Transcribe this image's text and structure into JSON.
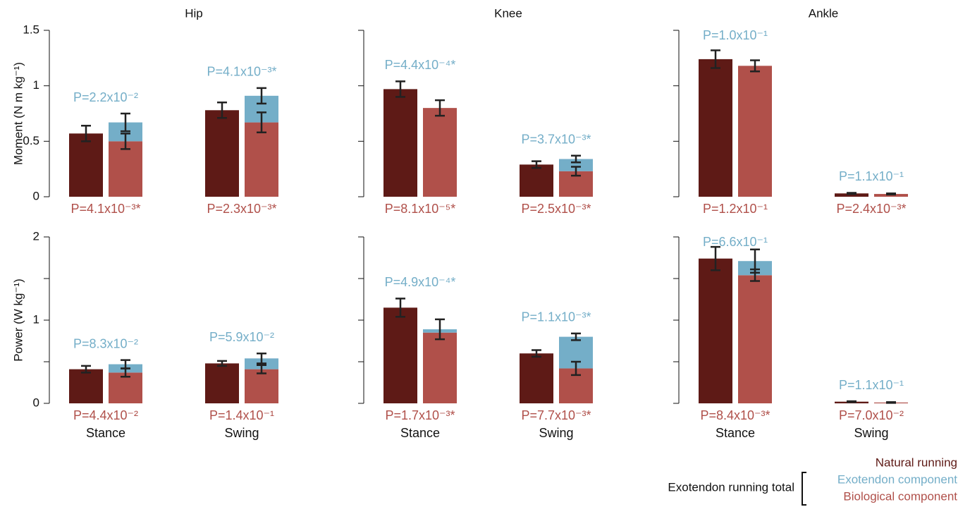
{
  "chart_data": [
    {
      "type": "bar",
      "title": "Hip",
      "ylabel": "Moment (N m kg⁻¹)",
      "categories": [
        null,
        null
      ],
      "ylim": [
        0,
        1.5
      ],
      "yticks": [
        0,
        0.5,
        1,
        1.5
      ],
      "ytick_labels": true,
      "series": [
        {
          "name": "Natural running",
          "color": "#5e1a16",
          "values": [
            0.57,
            0.78
          ],
          "errors": [
            0.07,
            0.07
          ]
        },
        {
          "name": "Biological component",
          "color": "#b0504a",
          "values": [
            0.5,
            0.67
          ],
          "errors": [
            0.07,
            0.09
          ]
        },
        {
          "name": "Exotendon component",
          "color": "#74aec8",
          "values": [
            0.17,
            0.24
          ],
          "errors": [
            0.08,
            0.07
          ]
        }
      ],
      "top_labels": [
        "P=2.2x10⁻²",
        "P=4.1x10⁻³*"
      ],
      "bottom_labels": [
        "P=4.1x10⁻³*",
        "P=2.3x10⁻³*"
      ]
    },
    {
      "type": "bar",
      "title": "Knee",
      "categories": [
        null,
        null
      ],
      "ylim": [
        0,
        1.5
      ],
      "yticks": [
        0,
        0.5,
        1,
        1.5
      ],
      "ytick_labels": false,
      "series": [
        {
          "name": "Natural running",
          "color": "#5e1a16",
          "values": [
            0.97,
            0.29
          ],
          "errors": [
            0.07,
            0.03
          ]
        },
        {
          "name": "Biological component",
          "color": "#b0504a",
          "values": [
            0.8,
            0.23
          ],
          "errors": [
            0.07,
            0.04
          ]
        },
        {
          "name": "Exotendon component",
          "color": "#74aec8",
          "values": [
            0,
            0.11
          ],
          "errors": [
            null,
            0.03
          ]
        }
      ],
      "top_labels": [
        "P=4.4x10⁻⁴*",
        "P=3.7x10⁻³*"
      ],
      "bottom_labels": [
        "P=8.1x10⁻⁵*",
        "P=2.5x10⁻³*"
      ]
    },
    {
      "type": "bar",
      "title": "Ankle",
      "categories": [
        null,
        null
      ],
      "ylim": [
        0,
        1.5
      ],
      "yticks": [
        0,
        0.5,
        1,
        1.5
      ],
      "ytick_labels": false,
      "series": [
        {
          "name": "Natural running",
          "color": "#5e1a16",
          "values": [
            1.24,
            0.03
          ],
          "errors": [
            0.08,
            0.005
          ]
        },
        {
          "name": "Biological component",
          "color": "#b0504a",
          "values": [
            1.18,
            0.025
          ],
          "errors": [
            0.05,
            0.005
          ]
        },
        {
          "name": "Exotendon component",
          "color": "#74aec8",
          "values": [
            0,
            0
          ],
          "errors": [
            null,
            null
          ]
        }
      ],
      "top_labels": [
        "P=1.0x10⁻¹",
        "P=1.1x10⁻¹"
      ],
      "bottom_labels": [
        "P=1.2x10⁻¹",
        "P=2.4x10⁻³*"
      ]
    },
    {
      "type": "bar",
      "ylabel": "Power (W kg⁻¹)",
      "categories": [
        "Stance",
        "Swing"
      ],
      "ylim": [
        0,
        2
      ],
      "yticks": [
        0,
        1,
        2
      ],
      "yminor_ticks": [
        0.5,
        1.5
      ],
      "ytick_labels": true,
      "series": [
        {
          "name": "Natural running",
          "color": "#5e1a16",
          "values": [
            0.41,
            0.48
          ],
          "errors": [
            0.04,
            0.03
          ]
        },
        {
          "name": "Biological component",
          "color": "#b0504a",
          "values": [
            0.37,
            0.41
          ],
          "errors": [
            0.05,
            0.05
          ]
        },
        {
          "name": "Exotendon component",
          "color": "#74aec8",
          "values": [
            0.1,
            0.13
          ],
          "errors": [
            0.05,
            0.06
          ]
        }
      ],
      "top_labels": [
        "P=8.3x10⁻²",
        "P=5.9x10⁻²"
      ],
      "bottom_labels": [
        "P=4.4x10⁻²",
        "P=1.4x10⁻¹"
      ]
    },
    {
      "type": "bar",
      "categories": [
        "Stance",
        "Swing"
      ],
      "ylim": [
        0,
        2
      ],
      "yticks": [
        0,
        1,
        2
      ],
      "yminor_ticks": [
        0.5,
        1.5
      ],
      "ytick_labels": false,
      "series": [
        {
          "name": "Natural running",
          "color": "#5e1a16",
          "values": [
            1.15,
            0.6
          ],
          "errors": [
            0.11,
            0.04
          ]
        },
        {
          "name": "Biological component",
          "color": "#b0504a",
          "values": [
            0.85,
            0.42
          ],
          "errors": [
            null,
            0.08
          ]
        },
        {
          "name": "Exotendon component",
          "color": "#74aec8",
          "values": [
            0.04,
            0.38
          ],
          "errors": [
            0.12,
            0.04
          ]
        }
      ],
      "top_labels": [
        "P=4.9x10⁻⁴*",
        "P=1.1x10⁻³*"
      ],
      "bottom_labels": [
        "P=1.7x10⁻³*",
        "P=7.7x10⁻³*"
      ]
    },
    {
      "type": "bar",
      "categories": [
        "Stance",
        "Swing"
      ],
      "ylim": [
        0,
        2
      ],
      "yticks": [
        0,
        1,
        2
      ],
      "yminor_ticks": [
        0.5,
        1.5
      ],
      "ytick_labels": false,
      "series": [
        {
          "name": "Natural running",
          "color": "#5e1a16",
          "values": [
            1.74,
            0.02
          ],
          "errors": [
            0.14,
            0.005
          ]
        },
        {
          "name": "Biological component",
          "color": "#b0504a",
          "values": [
            1.54,
            0.01
          ],
          "errors": [
            0.07,
            0.005
          ]
        },
        {
          "name": "Exotendon component",
          "color": "#74aec8",
          "values": [
            0.17,
            0
          ],
          "errors": [
            0.14,
            null
          ]
        }
      ],
      "top_labels": [
        "P=6.6x10⁻¹",
        "P=1.1x10⁻¹"
      ],
      "bottom_labels": [
        "P=8.4x10⁻³*",
        "P=7.0x10⁻²"
      ]
    }
  ],
  "legend": {
    "group_label": "Exotendon running total"
  }
}
